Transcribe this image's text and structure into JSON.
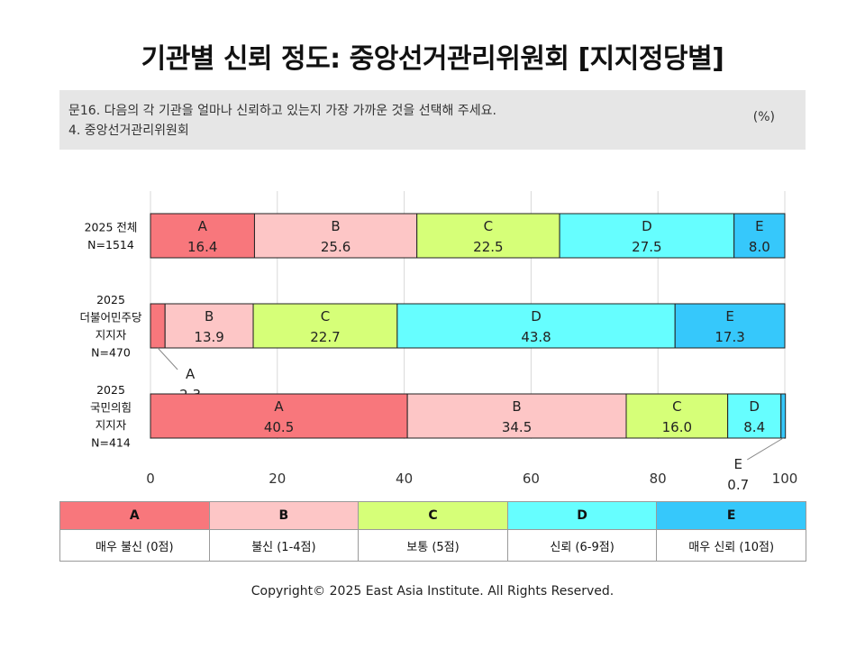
{
  "title": "기관별 신뢰 정도: 중앙선거관리위원회 [지지정당별]",
  "question": {
    "line1": "문16. 다음의 각 기관을 얼마나 신뢰하고 있는지 가장 가까운 것을 선택해 주세요.",
    "line2": "4. 중앙선거관리위원회",
    "unit": "(%)"
  },
  "colors": {
    "A": "#f8777c",
    "B": "#fdc6c6",
    "C": "#d6ff78",
    "D": "#66feff",
    "E": "#36c8fb"
  },
  "chart_data": {
    "type": "bar",
    "orientation": "horizontal",
    "stacked": true,
    "xlim": [
      0,
      100
    ],
    "x_ticks": [
      0,
      20,
      40,
      60,
      80,
      100
    ],
    "grid": true,
    "categories": [
      {
        "lines": [
          "2025 전체",
          "N=1514"
        ]
      },
      {
        "lines": [
          "2025",
          "더불어민주당",
          "지지자",
          "N=470"
        ]
      },
      {
        "lines": [
          "2025",
          "국민의힘",
          "지지자",
          "N=414"
        ]
      }
    ],
    "series": [
      {
        "name": "A",
        "values": [
          16.4,
          2.3,
          40.5
        ]
      },
      {
        "name": "B",
        "values": [
          25.6,
          13.9,
          34.5
        ]
      },
      {
        "name": "C",
        "values": [
          22.5,
          22.7,
          16.0
        ]
      },
      {
        "name": "D",
        "values": [
          27.5,
          43.8,
          8.4
        ]
      },
      {
        "name": "E",
        "values": [
          8.0,
          17.3,
          0.7
        ]
      }
    ],
    "outside_labels": [
      {
        "category": 1,
        "series": "A"
      },
      {
        "category": 2,
        "series": "E"
      }
    ]
  },
  "legend": {
    "keys": [
      "A",
      "B",
      "C",
      "D",
      "E"
    ],
    "descriptions": [
      "매우 불신 (0점)",
      "불신 (1-4점)",
      "보통 (5점)",
      "신뢰 (6-9점)",
      "매우 신뢰 (10점)"
    ]
  },
  "footer": "Copyright© 2025 East Asia Institute. All Rights Reserved."
}
